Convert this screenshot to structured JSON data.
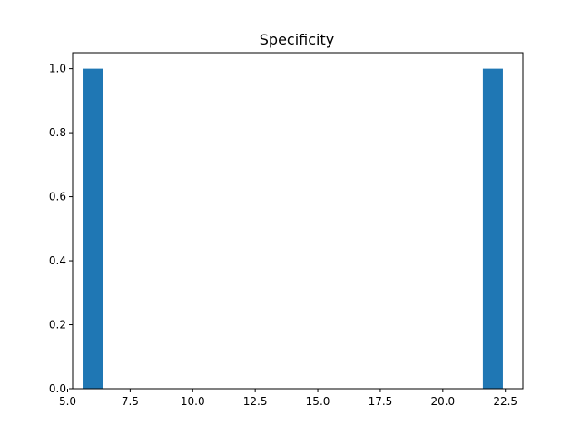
{
  "chart_data": {
    "type": "bar",
    "title": "Specificity",
    "xlabel": "",
    "ylabel": "",
    "bars": [
      {
        "x_start": 5.6,
        "x_end": 6.4,
        "value": 1.0
      },
      {
        "x_start": 21.6,
        "x_end": 22.4,
        "value": 1.0
      }
    ],
    "xlim": [
      5.2,
      23.2
    ],
    "ylim": [
      0,
      1.05
    ],
    "xticks": [
      5.0,
      7.5,
      10.0,
      12.5,
      15.0,
      17.5,
      20.0,
      22.5
    ],
    "xtick_labels": [
      "5.0",
      "7.5",
      "10.0",
      "12.5",
      "15.0",
      "17.5",
      "20.0",
      "22.5"
    ],
    "yticks": [
      0.0,
      0.2,
      0.4,
      0.6,
      0.8,
      1.0
    ],
    "ytick_labels": [
      "0.0",
      "0.2",
      "0.4",
      "0.6",
      "0.8",
      "1.0"
    ],
    "grid": false,
    "bar_color": "#1f77b4"
  }
}
